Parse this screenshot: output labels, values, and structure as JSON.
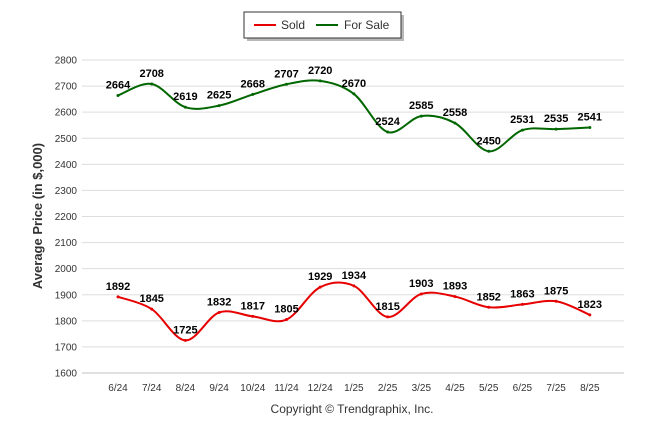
{
  "chart_data": {
    "type": "line",
    "categories": [
      "6/24",
      "7/24",
      "8/24",
      "9/24",
      "10/24",
      "11/24",
      "12/24",
      "1/25",
      "2/25",
      "3/25",
      "4/25",
      "5/25",
      "6/25",
      "7/25",
      "8/25"
    ],
    "series": [
      {
        "name": "Sold",
        "color": "#e60000",
        "values": [
          1892,
          1845,
          1725,
          1832,
          1817,
          1805,
          1929,
          1934,
          1815,
          1903,
          1893,
          1852,
          1863,
          1875,
          1823
        ]
      },
      {
        "name": "For Sale",
        "color": "#006600",
        "values": [
          2664,
          2708,
          2619,
          2625,
          2668,
          2707,
          2720,
          2670,
          2524,
          2585,
          2558,
          2450,
          2531,
          2535,
          2541
        ]
      }
    ],
    "ylabel": "Average Price (in $,000)",
    "xlabel": "",
    "ylim": [
      1600,
      2800
    ],
    "yticks": [
      1600,
      1700,
      1800,
      1900,
      2000,
      2100,
      2200,
      2300,
      2400,
      2500,
      2600,
      2700,
      2800
    ],
    "grid": true,
    "legend": "top-center",
    "credit": "Copyright © Trendgraphix, Inc."
  }
}
